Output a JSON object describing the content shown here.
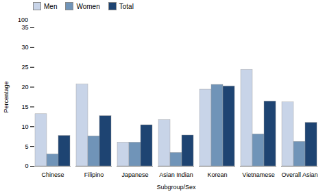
{
  "chart_data": {
    "type": "bar",
    "categories": [
      "Chinese",
      "Filipino",
      "Japanese",
      "Asian Indian",
      "Korean",
      "Vietnamese",
      "Overall Asian"
    ],
    "series": [
      {
        "name": "Men",
        "color": "#c8d4e8",
        "values": [
          13.2,
          20.7,
          6.0,
          11.7,
          19.4,
          24.4,
          16.2
        ]
      },
      {
        "name": "Women",
        "color": "#7094b8",
        "values": [
          3.0,
          7.6,
          6.0,
          3.4,
          20.6,
          8.1,
          6.2
        ]
      },
      {
        "name": "Total",
        "color": "#1e4472",
        "values": [
          7.7,
          12.7,
          10.4,
          7.8,
          20.2,
          16.4,
          11.0
        ]
      }
    ],
    "xlabel": "Subgroup/Sex",
    "ylabel": "Percentage",
    "ylim": [
      0,
      35
    ],
    "yticks": [
      0,
      5,
      10,
      15,
      20,
      25,
      30,
      35
    ],
    "annotations": [
      "100"
    ],
    "legend": "upper left",
    "grid": false
  }
}
